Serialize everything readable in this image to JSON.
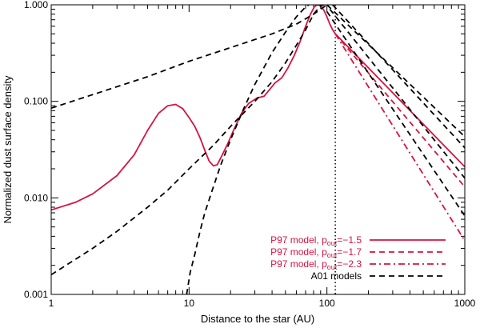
{
  "chart_data": {
    "type": "line",
    "xlabel": "Distance to the star (AU)",
    "ylabel": "Normalized dust surface density",
    "xscale": "log",
    "yscale": "log",
    "xlim": [
      1,
      1000
    ],
    "ylim": [
      0.001,
      1.0
    ],
    "x_ticks": [
      {
        "value": 1,
        "label": "1"
      },
      {
        "value": 10,
        "label": "10"
      },
      {
        "value": 100,
        "label": "100"
      },
      {
        "value": 1000,
        "label": "1000"
      }
    ],
    "y_ticks": [
      {
        "value": 0.001,
        "label": "0.001"
      },
      {
        "value": 0.01,
        "label": "0.010"
      },
      {
        "value": 0.1,
        "label": "0.100"
      },
      {
        "value": 1.0,
        "label": "1.000"
      }
    ],
    "vline_x": 115,
    "legend_placement": "bottom-right",
    "colors": {
      "p97": "#d4143f",
      "a01": "#000000",
      "vline": "#000000"
    },
    "legend": [
      {
        "prefix": "P97 model, p",
        "sub": "out",
        "suffix": "=−1.5",
        "color": "#d4143f",
        "dash": "solid"
      },
      {
        "prefix": "P97 model, p",
        "sub": "out",
        "suffix": "=−1.7",
        "color": "#d4143f",
        "dash": "dashed"
      },
      {
        "prefix": "P97 model, p",
        "sub": "out",
        "suffix": "=−2.3",
        "color": "#d4143f",
        "dash": "dashdot"
      },
      {
        "prefix": "A01 models",
        "sub": "",
        "suffix": "",
        "color": "#000000",
        "dash": "dashed"
      }
    ],
    "series": [
      {
        "color": "#d4143f",
        "dash": "solid",
        "points": [
          [
            1,
            0.0075
          ],
          [
            1.5,
            0.009
          ],
          [
            2,
            0.011
          ],
          [
            3,
            0.017
          ],
          [
            4,
            0.028
          ],
          [
            5,
            0.05
          ],
          [
            6,
            0.075
          ],
          [
            7,
            0.09
          ],
          [
            8,
            0.093
          ],
          [
            9,
            0.084
          ],
          [
            10,
            0.068
          ],
          [
            11,
            0.055
          ],
          [
            12,
            0.042
          ],
          [
            13,
            0.031
          ],
          [
            14,
            0.024
          ],
          [
            15,
            0.0215
          ],
          [
            16,
            0.022
          ],
          [
            17,
            0.026
          ],
          [
            19,
            0.036
          ],
          [
            21,
            0.05
          ],
          [
            24,
            0.075
          ],
          [
            27,
            0.095
          ],
          [
            31,
            0.108
          ],
          [
            35,
            0.113
          ],
          [
            38,
            0.13
          ],
          [
            42,
            0.155
          ],
          [
            47,
            0.175
          ],
          [
            52,
            0.22
          ],
          [
            58,
            0.3
          ],
          [
            64,
            0.42
          ],
          [
            70,
            0.6
          ],
          [
            76,
            0.8
          ],
          [
            81,
            0.95
          ],
          [
            85,
            1.0
          ],
          [
            90,
            0.98
          ],
          [
            95,
            0.88
          ],
          [
            100,
            0.75
          ],
          [
            105,
            0.63
          ],
          [
            110,
            0.55
          ],
          [
            115,
            0.5
          ]
        ]
      },
      {
        "color": "#d4143f",
        "dash": "solid",
        "points": [
          [
            115,
            0.5
          ],
          [
            1000,
            0.021
          ]
        ]
      },
      {
        "color": "#d4143f",
        "dash": "dashed",
        "points": [
          [
            115,
            0.5
          ],
          [
            1000,
            0.013
          ]
        ]
      },
      {
        "color": "#d4143f",
        "dash": "dashdot",
        "points": [
          [
            115,
            0.5
          ],
          [
            1000,
            0.0036
          ]
        ]
      },
      {
        "color": "#000000",
        "dash": "dashed",
        "points": [
          [
            1,
            0.085
          ],
          [
            5,
            0.18
          ],
          [
            10,
            0.26
          ],
          [
            20,
            0.36
          ],
          [
            40,
            0.5
          ],
          [
            60,
            0.63
          ],
          [
            80,
            0.8
          ],
          [
            90,
            0.9
          ],
          [
            100,
            1.0
          ]
        ]
      },
      {
        "color": "#000000",
        "dash": "dashed",
        "points": [
          [
            1,
            0.0016
          ],
          [
            2,
            0.003
          ],
          [
            3,
            0.0045
          ],
          [
            5,
            0.008
          ],
          [
            7,
            0.012
          ],
          [
            10,
            0.02
          ],
          [
            15,
            0.035
          ],
          [
            20,
            0.055
          ],
          [
            30,
            0.1
          ],
          [
            40,
            0.16
          ],
          [
            50,
            0.25
          ],
          [
            60,
            0.38
          ],
          [
            70,
            0.55
          ],
          [
            80,
            0.8
          ],
          [
            90,
            0.98
          ],
          [
            95,
            1.0
          ]
        ]
      },
      {
        "color": "#000000",
        "dash": "dashed",
        "points": [
          [
            9.6,
            0.001
          ],
          [
            10.2,
            0.0017
          ],
          [
            11,
            0.0026
          ],
          [
            12,
            0.0045
          ],
          [
            13,
            0.007
          ],
          [
            15,
            0.013
          ],
          [
            17,
            0.022
          ],
          [
            20,
            0.04
          ],
          [
            25,
            0.085
          ],
          [
            30,
            0.15
          ],
          [
            40,
            0.32
          ],
          [
            50,
            0.52
          ],
          [
            60,
            0.75
          ],
          [
            70,
            0.95
          ],
          [
            74,
            1.0
          ]
        ]
      },
      {
        "color": "#000000",
        "dash": "dashed",
        "points": [
          [
            100,
            1.0
          ],
          [
            1000,
            0.043
          ]
        ]
      },
      {
        "color": "#000000",
        "dash": "dashed",
        "points": [
          [
            110,
            1.0
          ],
          [
            1000,
            0.033
          ]
        ]
      },
      {
        "color": "#000000",
        "dash": "dashed",
        "points": [
          [
            105,
            0.9
          ],
          [
            1000,
            0.016
          ]
        ]
      },
      {
        "color": "#000000",
        "dash": "dashed",
        "points": [
          [
            100,
            0.85
          ],
          [
            1000,
            0.0065
          ]
        ]
      }
    ]
  }
}
